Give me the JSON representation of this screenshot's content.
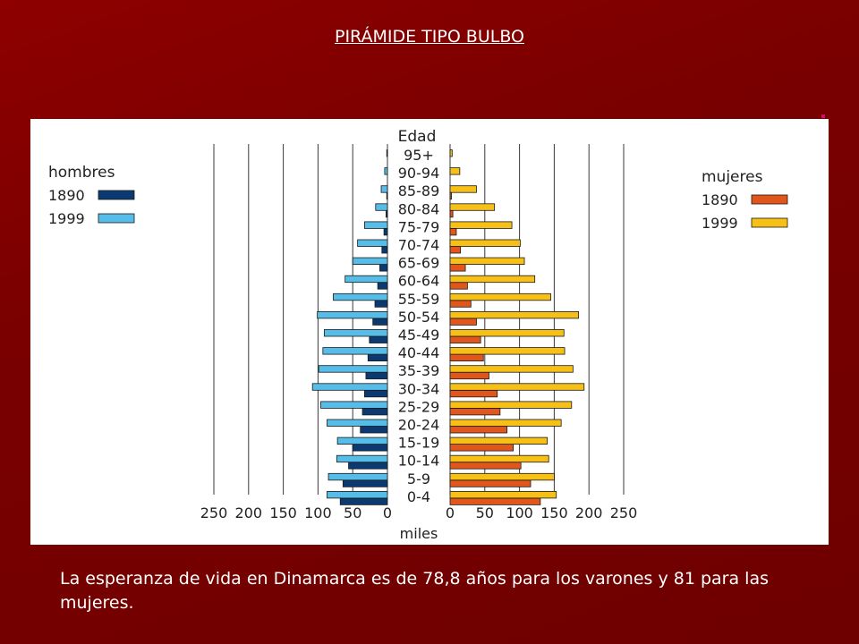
{
  "slide": {
    "title": "PIRÁMIDE TIPO BULBO",
    "caption": "La esperanza de vida en Dinamarca es de 78,8 años para los varones y 81 para las mujeres."
  },
  "chart_data": {
    "type": "bar",
    "subtype": "population-pyramid",
    "title": "",
    "age_axis_label": "Edad",
    "xlabel": "miles",
    "xlim": [
      0,
      250
    ],
    "x_ticks": [
      250,
      200,
      150,
      100,
      50,
      0
    ],
    "grid": true,
    "categories": [
      "95+",
      "90-94",
      "85-89",
      "80-84",
      "75-79",
      "70-74",
      "65-69",
      "60-64",
      "55-59",
      "50-54",
      "45-49",
      "40-44",
      "35-39",
      "30-34",
      "25-29",
      "20-24",
      "15-19",
      "10-14",
      "5-9",
      "0-4"
    ],
    "left_group": {
      "label": "hombres",
      "legend_position": "top-left",
      "series": [
        {
          "name": "1890",
          "color": "#0b3a73",
          "values": [
            0,
            0,
            1,
            2,
            5,
            8,
            11,
            14,
            18,
            21,
            26,
            28,
            31,
            33,
            36,
            39,
            50,
            56,
            64,
            68
          ]
        },
        {
          "name": "1999",
          "color": "#56bde8",
          "values": [
            1,
            4,
            9,
            17,
            33,
            43,
            50,
            61,
            78,
            101,
            91,
            93,
            99,
            108,
            96,
            87,
            72,
            73,
            85,
            87
          ]
        }
      ]
    },
    "right_group": {
      "label": "mujeres",
      "legend_position": "top-right",
      "series": [
        {
          "name": "1890",
          "color": "#e0561b",
          "values": [
            0,
            0,
            2,
            4,
            9,
            15,
            22,
            25,
            30,
            38,
            44,
            48,
            56,
            68,
            72,
            82,
            91,
            102,
            116,
            130
          ]
        },
        {
          "name": "1999",
          "color": "#f6c017",
          "values": [
            3,
            14,
            38,
            64,
            89,
            101,
            107,
            122,
            145,
            185,
            164,
            165,
            177,
            193,
            175,
            160,
            140,
            142,
            150,
            153
          ]
        }
      ]
    }
  }
}
